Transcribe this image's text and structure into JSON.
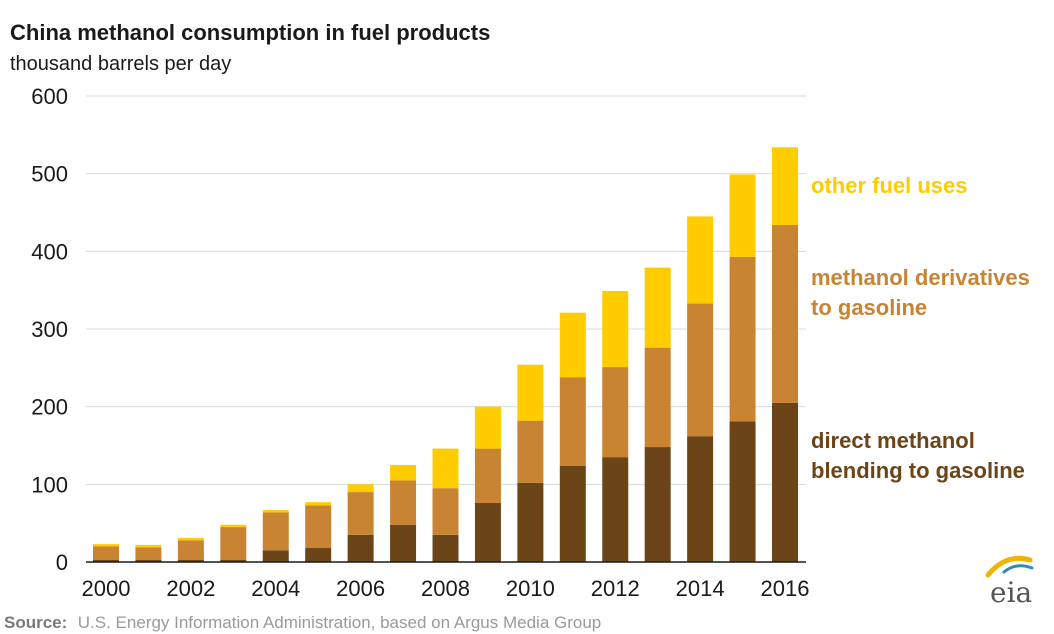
{
  "chart_data": {
    "type": "bar",
    "stacked": true,
    "title": "China methanol consumption in fuel products",
    "subtitle": "thousand barrels per day",
    "categories": [
      "2000",
      "2001",
      "2002",
      "2003",
      "2004",
      "2005",
      "2006",
      "2007",
      "2008",
      "2009",
      "2010",
      "2011",
      "2012",
      "2013",
      "2014",
      "2015",
      "2016"
    ],
    "x_tick_labels": [
      "2000",
      "2002",
      "2004",
      "2006",
      "2008",
      "2010",
      "2012",
      "2014",
      "2016"
    ],
    "ylim": [
      0,
      600
    ],
    "yticks": [
      0,
      100,
      200,
      300,
      400,
      500,
      600
    ],
    "grid": true,
    "legend_position": "right",
    "series": [
      {
        "name": "direct methanol blending to gasoline",
        "color": "#6b4418",
        "values": [
          3,
          3,
          3,
          3,
          15,
          18,
          35,
          48,
          35,
          76,
          102,
          124,
          135,
          148,
          162,
          181,
          205
        ]
      },
      {
        "name": "methanol derivatives to gasoline",
        "color": "#c88432",
        "values": [
          17,
          16,
          25,
          42,
          49,
          55,
          55,
          57,
          60,
          70,
          80,
          114,
          116,
          128,
          171,
          212,
          229
        ]
      },
      {
        "name": "other fuel uses",
        "color": "#ffcc00",
        "values": [
          3,
          3,
          3,
          3,
          3,
          4,
          10,
          20,
          51,
          54,
          72,
          83,
          98,
          103,
          112,
          106,
          100
        ]
      }
    ]
  },
  "legend_labels": {
    "other": [
      "other fuel uses"
    ],
    "derivatives": [
      "methanol derivatives",
      "to gasoline"
    ],
    "direct": [
      "direct methanol",
      "blending to gasoline"
    ]
  },
  "source": {
    "label": "Source:",
    "text": "U.S. Energy Information Administration, based on Argus Media Group"
  },
  "logo": {
    "text": "eia",
    "icon": "eia-logo-icon",
    "colors": [
      "#f0b400",
      "#2e8bc0"
    ]
  }
}
